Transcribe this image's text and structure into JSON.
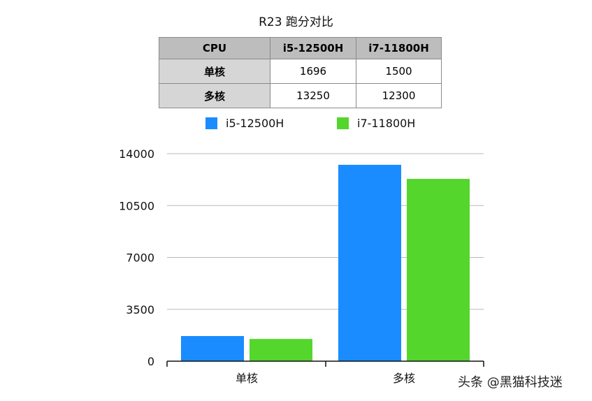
{
  "title": "R23 跑分对比",
  "table": {
    "headers": [
      "CPU",
      "i5-12500H",
      "i7-11800H"
    ],
    "rows": [
      {
        "label": "单核",
        "values": [
          "1696",
          "1500"
        ]
      },
      {
        "label": "多核",
        "values": [
          "13250",
          "12300"
        ]
      }
    ]
  },
  "colors": {
    "i5": "#1a8cff",
    "i7": "#54d62c"
  },
  "watermark": "头条 @黑猫科技迷",
  "chart_data": {
    "type": "bar",
    "title": "R23 跑分对比",
    "categories": [
      "单核",
      "多核"
    ],
    "series": [
      {
        "name": "i5-12500H",
        "values": [
          1696,
          13250
        ]
      },
      {
        "name": "i7-11800H",
        "values": [
          1500,
          12300
        ]
      }
    ],
    "ylim": [
      0,
      14000
    ],
    "yticks": [
      "0",
      "3500",
      "7000",
      "10500",
      "14000"
    ],
    "grid": true,
    "legend": "top"
  }
}
